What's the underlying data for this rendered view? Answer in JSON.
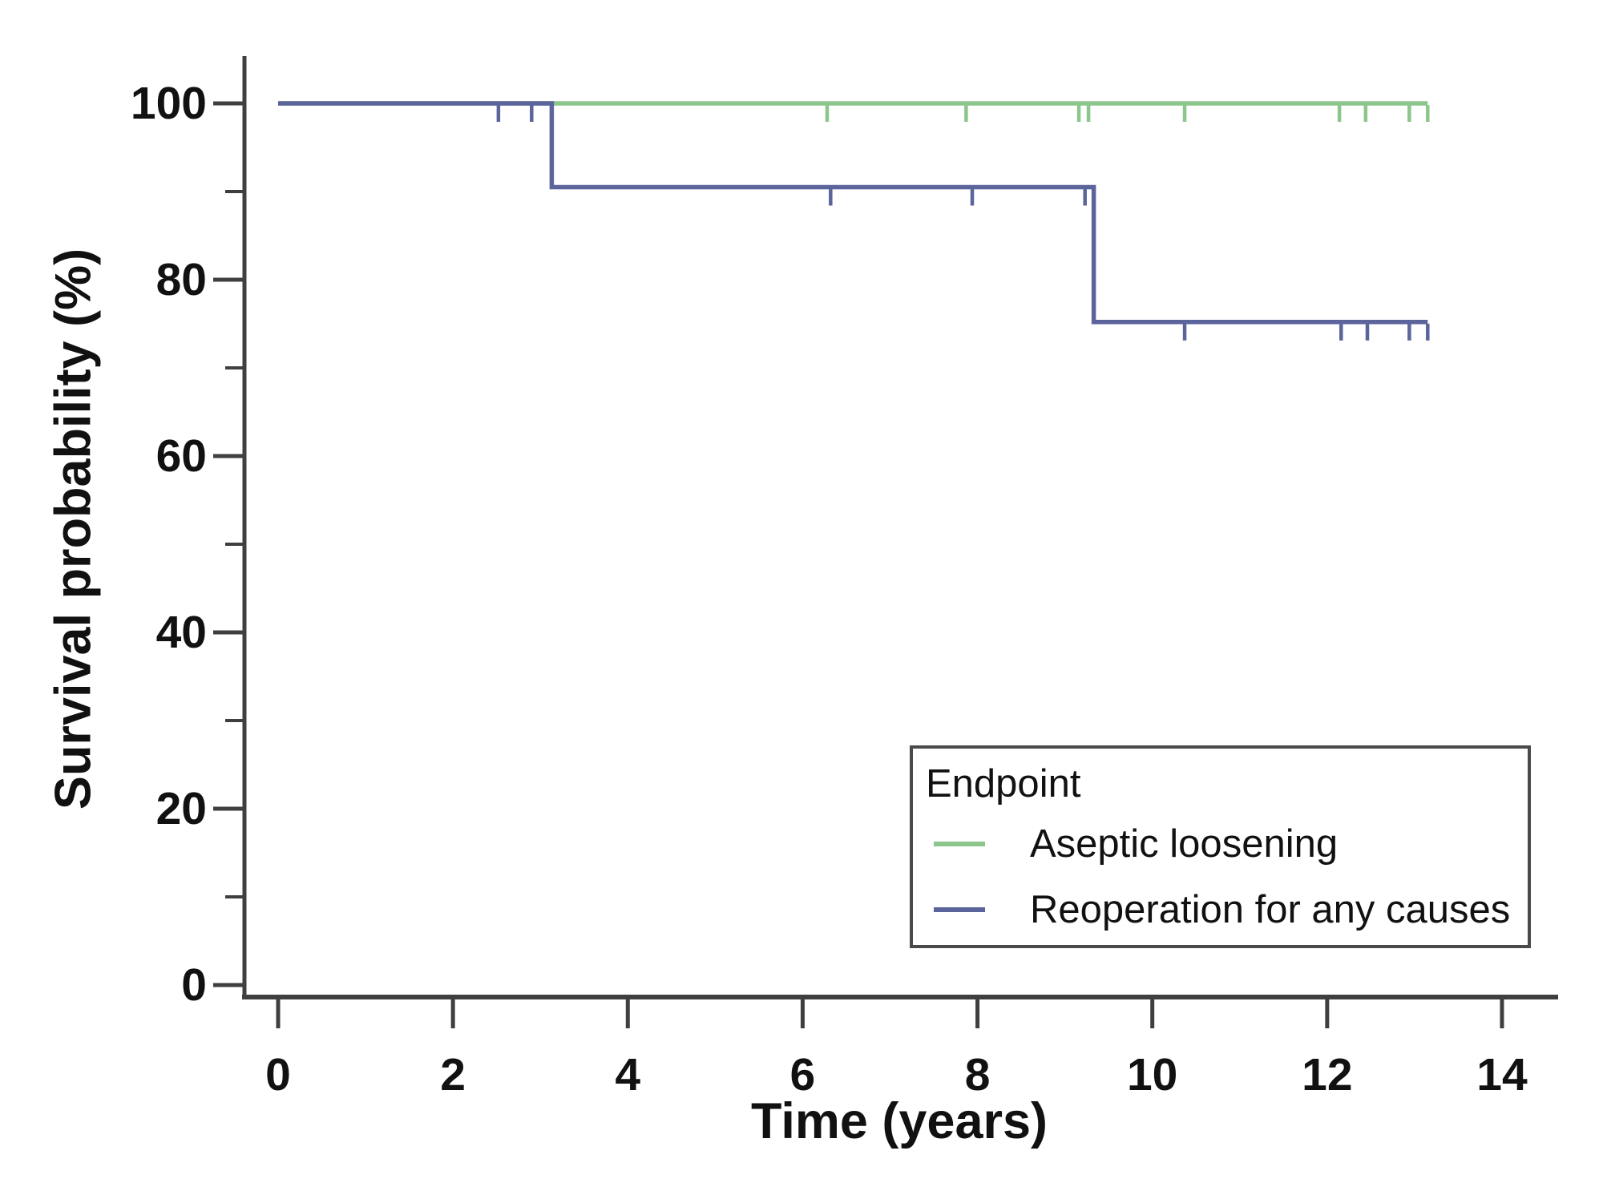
{
  "figure": {
    "background": "#ffffff",
    "axis_color": "#3f3f3f",
    "text_color": "#111111"
  },
  "chart_data": {
    "type": "line",
    "subtype": "kaplan_meier_step_curve",
    "title": "",
    "xlabel": "Time (years)",
    "ylabel": "Survival probability (%)",
    "xlim": [
      0,
      14
    ],
    "ylim": [
      0,
      105
    ],
    "x_ticks": [
      0,
      2,
      4,
      6,
      8,
      10,
      12,
      14
    ],
    "y_ticks": [
      100,
      80,
      60,
      40,
      20,
      0
    ],
    "y_minor_ticks": [
      90,
      70,
      50,
      30,
      10
    ],
    "grid": false,
    "legend": {
      "title": "Endpoint",
      "position": "bottom-right"
    },
    "series": [
      {
        "name": "Aseptic loosening",
        "color": "#8cc68c",
        "points": [
          [
            0,
            100
          ],
          [
            13.15,
            100
          ]
        ],
        "censor_marks": [
          [
            6.28,
            100
          ],
          [
            7.87,
            100
          ],
          [
            9.16,
            100
          ],
          [
            9.27,
            100
          ],
          [
            10.37,
            100
          ],
          [
            12.14,
            100
          ],
          [
            12.44,
            100
          ],
          [
            12.94,
            100
          ],
          [
            13.15,
            100
          ]
        ]
      },
      {
        "name": "Reoperation for any causes",
        "color": "#5c649c",
        "points": [
          [
            0,
            100
          ],
          [
            3.13,
            100
          ],
          [
            3.13,
            90.5
          ],
          [
            9.33,
            90.5
          ],
          [
            9.33,
            75.2
          ],
          [
            13.15,
            75.2
          ]
        ],
        "censor_marks": [
          [
            2.52,
            100
          ],
          [
            2.9,
            100
          ],
          [
            6.32,
            90.5
          ],
          [
            7.94,
            90.5
          ],
          [
            9.23,
            90.5
          ],
          [
            10.37,
            75.2
          ],
          [
            12.16,
            75.2
          ],
          [
            12.46,
            75.2
          ],
          [
            12.94,
            75.2
          ],
          [
            13.15,
            75.2
          ]
        ]
      }
    ]
  }
}
